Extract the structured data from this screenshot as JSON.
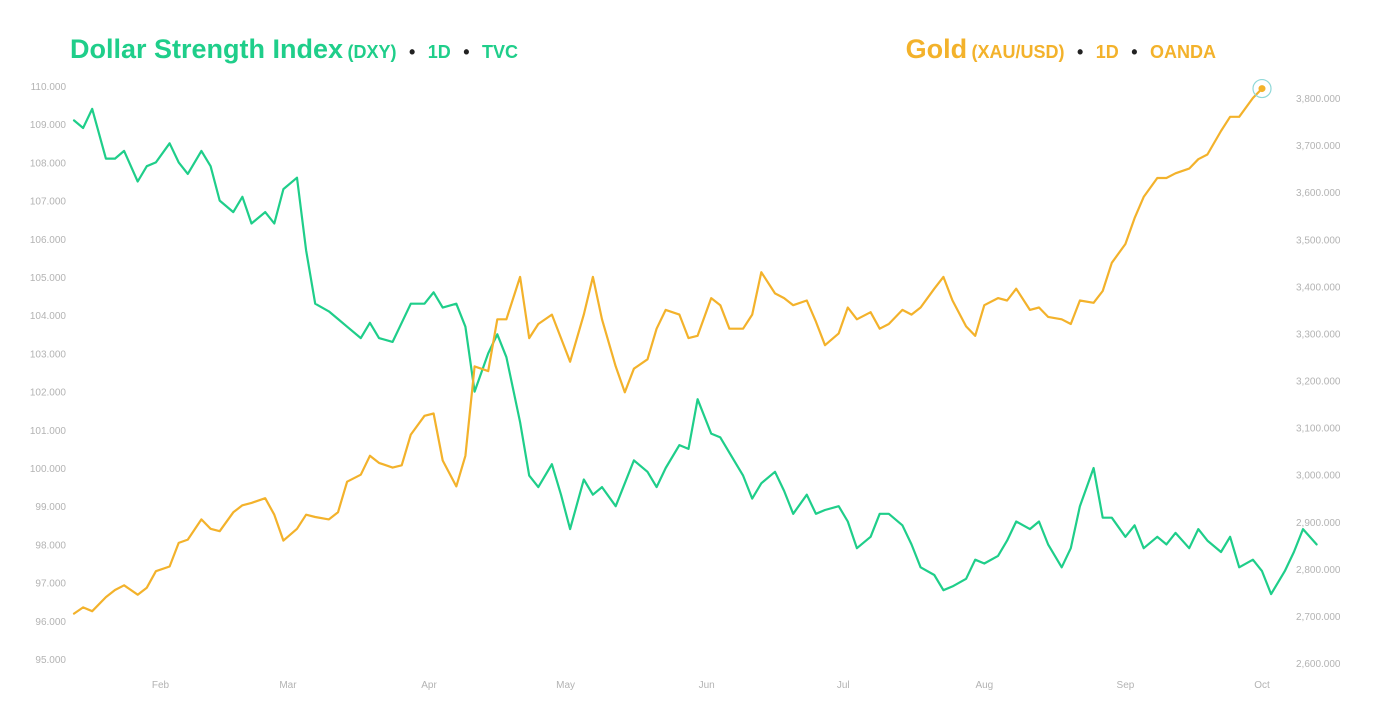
{
  "legend": {
    "left": {
      "name": "Dollar Strength Index",
      "symbol": "(DXY)",
      "interval": "1D",
      "source": "TVC",
      "color": "#1fce8a"
    },
    "right": {
      "name": "Gold",
      "symbol": "(XAU/USD)",
      "interval": "1D",
      "source": "OANDA",
      "color": "#f3b22b"
    },
    "separator": "•"
  },
  "chart_data": {
    "type": "line",
    "x_axis": {
      "range": [
        "2025-01-13",
        "2025-10-01"
      ],
      "ticks": [
        {
          "date": "2025-02-01",
          "label": "Feb"
        },
        {
          "date": "2025-03-01",
          "label": "Mar"
        },
        {
          "date": "2025-04-01",
          "label": "Apr"
        },
        {
          "date": "2025-05-01",
          "label": "May"
        },
        {
          "date": "2025-06-01",
          "label": "Jun"
        },
        {
          "date": "2025-07-01",
          "label": "Jul"
        },
        {
          "date": "2025-08-01",
          "label": "Aug"
        },
        {
          "date": "2025-09-01",
          "label": "Sep"
        },
        {
          "date": "2025-10-01",
          "label": "Oct"
        }
      ]
    },
    "y_left": {
      "range": [
        94.7,
        110.3
      ],
      "ticks": [
        "95.000",
        "96.000",
        "97.000",
        "98.000",
        "99.000",
        "100.000",
        "101.000",
        "102.000",
        "103.000",
        "104.000",
        "105.000",
        "106.000",
        "107.000",
        "108.000",
        "109.000",
        "110.000"
      ],
      "tick_values": [
        95,
        96,
        97,
        98,
        99,
        100,
        101,
        102,
        103,
        104,
        105,
        106,
        107,
        108,
        109,
        110
      ]
    },
    "y_right": {
      "range": [
        2589,
        3826
      ],
      "ticks": [
        "2,600.000",
        "2,700.000",
        "2,800.000",
        "2,900.000",
        "3,000.000",
        "3,100.000",
        "3,200.000",
        "3,300.000",
        "3,400.000",
        "3,500.000",
        "3,600.000",
        "3,700.000",
        "3,800.000"
      ],
      "tick_values": [
        2600,
        2700,
        2800,
        2900,
        3000,
        3100,
        3200,
        3300,
        3400,
        3500,
        3600,
        3700,
        3800
      ]
    },
    "grid": false,
    "series": [
      {
        "name": "Dollar Strength Index (DXY)",
        "axis": "left",
        "color": "#1fce8a",
        "points": [
          [
            "2025-01-13",
            109.1
          ],
          [
            "2025-01-15",
            108.9
          ],
          [
            "2025-01-17",
            109.4
          ],
          [
            "2025-01-20",
            108.1
          ],
          [
            "2025-01-22",
            108.1
          ],
          [
            "2025-01-24",
            108.3
          ],
          [
            "2025-01-27",
            107.5
          ],
          [
            "2025-01-29",
            107.9
          ],
          [
            "2025-01-31",
            108.0
          ],
          [
            "2025-02-03",
            108.5
          ],
          [
            "2025-02-05",
            108.0
          ],
          [
            "2025-02-07",
            107.7
          ],
          [
            "2025-02-10",
            108.3
          ],
          [
            "2025-02-12",
            107.9
          ],
          [
            "2025-02-14",
            107.0
          ],
          [
            "2025-02-17",
            106.7
          ],
          [
            "2025-02-19",
            107.1
          ],
          [
            "2025-02-21",
            106.4
          ],
          [
            "2025-02-24",
            106.7
          ],
          [
            "2025-02-26",
            106.4
          ],
          [
            "2025-02-28",
            107.3
          ],
          [
            "2025-03-03",
            107.6
          ],
          [
            "2025-03-05",
            105.7
          ],
          [
            "2025-03-07",
            104.3
          ],
          [
            "2025-03-10",
            104.1
          ],
          [
            "2025-03-12",
            103.9
          ],
          [
            "2025-03-14",
            103.7
          ],
          [
            "2025-03-17",
            103.4
          ],
          [
            "2025-03-19",
            103.8
          ],
          [
            "2025-03-21",
            103.4
          ],
          [
            "2025-03-24",
            103.3
          ],
          [
            "2025-03-26",
            103.8
          ],
          [
            "2025-03-28",
            104.3
          ],
          [
            "2025-03-31",
            104.3
          ],
          [
            "2025-04-02",
            104.6
          ],
          [
            "2025-04-04",
            104.2
          ],
          [
            "2025-04-07",
            104.3
          ],
          [
            "2025-04-09",
            103.7
          ],
          [
            "2025-04-11",
            102.0
          ],
          [
            "2025-04-14",
            103.0
          ],
          [
            "2025-04-16",
            103.5
          ],
          [
            "2025-04-18",
            102.9
          ],
          [
            "2025-04-21",
            101.2
          ],
          [
            "2025-04-23",
            99.8
          ],
          [
            "2025-04-25",
            99.5
          ],
          [
            "2025-04-28",
            100.1
          ],
          [
            "2025-04-30",
            99.3
          ],
          [
            "2025-05-02",
            98.4
          ],
          [
            "2025-05-05",
            99.7
          ],
          [
            "2025-05-07",
            99.3
          ],
          [
            "2025-05-09",
            99.5
          ],
          [
            "2025-05-12",
            99.0
          ],
          [
            "2025-05-14",
            99.6
          ],
          [
            "2025-05-16",
            100.2
          ],
          [
            "2025-05-19",
            99.9
          ],
          [
            "2025-05-21",
            99.5
          ],
          [
            "2025-05-23",
            100.0
          ],
          [
            "2025-05-26",
            100.6
          ],
          [
            "2025-05-28",
            100.5
          ],
          [
            "2025-05-30",
            101.8
          ],
          [
            "2025-06-02",
            100.9
          ],
          [
            "2025-06-04",
            100.8
          ],
          [
            "2025-06-06",
            100.4
          ],
          [
            "2025-06-09",
            99.8
          ],
          [
            "2025-06-11",
            99.2
          ],
          [
            "2025-06-13",
            99.6
          ],
          [
            "2025-06-16",
            99.9
          ],
          [
            "2025-06-18",
            99.4
          ],
          [
            "2025-06-20",
            98.8
          ],
          [
            "2025-06-23",
            99.3
          ],
          [
            "2025-06-25",
            98.8
          ],
          [
            "2025-06-27",
            98.9
          ],
          [
            "2025-06-30",
            99.0
          ],
          [
            "2025-07-02",
            98.6
          ],
          [
            "2025-07-04",
            97.9
          ],
          [
            "2025-07-07",
            98.2
          ],
          [
            "2025-07-09",
            98.8
          ],
          [
            "2025-07-11",
            98.8
          ],
          [
            "2025-07-14",
            98.5
          ],
          [
            "2025-07-16",
            98.0
          ],
          [
            "2025-07-18",
            97.4
          ],
          [
            "2025-07-21",
            97.2
          ],
          [
            "2025-07-23",
            96.8
          ],
          [
            "2025-07-25",
            96.9
          ],
          [
            "2025-07-28",
            97.1
          ],
          [
            "2025-07-30",
            97.6
          ],
          [
            "2025-08-01",
            97.5
          ],
          [
            "2025-08-04",
            97.7
          ],
          [
            "2025-08-06",
            98.1
          ],
          [
            "2025-08-08",
            98.6
          ],
          [
            "2025-08-11",
            98.4
          ],
          [
            "2025-08-13",
            98.6
          ],
          [
            "2025-08-15",
            98.0
          ],
          [
            "2025-08-18",
            97.4
          ],
          [
            "2025-08-20",
            97.9
          ],
          [
            "2025-08-22",
            99.0
          ],
          [
            "2025-08-25",
            100.0
          ],
          [
            "2025-08-27",
            98.7
          ],
          [
            "2025-08-29",
            98.7
          ],
          [
            "2025-09-01",
            98.2
          ],
          [
            "2025-09-03",
            98.5
          ],
          [
            "2025-09-05",
            97.9
          ],
          [
            "2025-09-08",
            98.2
          ],
          [
            "2025-09-10",
            98.0
          ],
          [
            "2025-09-12",
            98.3
          ],
          [
            "2025-09-15",
            97.9
          ],
          [
            "2025-09-17",
            98.4
          ],
          [
            "2025-09-19",
            98.1
          ],
          [
            "2025-09-22",
            97.8
          ],
          [
            "2025-09-24",
            98.2
          ],
          [
            "2025-09-26",
            97.4
          ],
          [
            "2025-09-29",
            97.6
          ],
          [
            "2025-10-01",
            97.3
          ],
          [
            "2025-10-03",
            96.7
          ],
          [
            "2025-10-06",
            97.3
          ],
          [
            "2025-10-08",
            97.8
          ],
          [
            "2025-10-10",
            98.4
          ],
          [
            "2025-10-13",
            98.0
          ]
        ]
      },
      {
        "name": "Gold (XAU/USD)",
        "axis": "right",
        "color": "#f3b22b",
        "points": [
          [
            "2025-01-13",
            2705
          ],
          [
            "2025-01-15",
            2718
          ],
          [
            "2025-01-17",
            2710
          ],
          [
            "2025-01-20",
            2740
          ],
          [
            "2025-01-22",
            2755
          ],
          [
            "2025-01-24",
            2765
          ],
          [
            "2025-01-27",
            2745
          ],
          [
            "2025-01-29",
            2760
          ],
          [
            "2025-01-31",
            2795
          ],
          [
            "2025-02-03",
            2805
          ],
          [
            "2025-02-05",
            2855
          ],
          [
            "2025-02-07",
            2862
          ],
          [
            "2025-02-10",
            2905
          ],
          [
            "2025-02-12",
            2885
          ],
          [
            "2025-02-14",
            2880
          ],
          [
            "2025-02-17",
            2920
          ],
          [
            "2025-02-19",
            2935
          ],
          [
            "2025-02-21",
            2940
          ],
          [
            "2025-02-24",
            2950
          ],
          [
            "2025-02-26",
            2915
          ],
          [
            "2025-02-28",
            2860
          ],
          [
            "2025-03-03",
            2885
          ],
          [
            "2025-03-05",
            2915
          ],
          [
            "2025-03-07",
            2910
          ],
          [
            "2025-03-10",
            2905
          ],
          [
            "2025-03-12",
            2920
          ],
          [
            "2025-03-14",
            2985
          ],
          [
            "2025-03-17",
            3000
          ],
          [
            "2025-03-19",
            3040
          ],
          [
            "2025-03-21",
            3025
          ],
          [
            "2025-03-24",
            3015
          ],
          [
            "2025-03-26",
            3020
          ],
          [
            "2025-03-28",
            3085
          ],
          [
            "2025-03-31",
            3125
          ],
          [
            "2025-04-02",
            3130
          ],
          [
            "2025-04-04",
            3030
          ],
          [
            "2025-04-07",
            2975
          ],
          [
            "2025-04-09",
            3040
          ],
          [
            "2025-04-11",
            3230
          ],
          [
            "2025-04-14",
            3220
          ],
          [
            "2025-04-16",
            3330
          ],
          [
            "2025-04-18",
            3330
          ],
          [
            "2025-04-21",
            3420
          ],
          [
            "2025-04-23",
            3290
          ],
          [
            "2025-04-25",
            3320
          ],
          [
            "2025-04-28",
            3340
          ],
          [
            "2025-04-30",
            3290
          ],
          [
            "2025-05-02",
            3240
          ],
          [
            "2025-05-05",
            3340
          ],
          [
            "2025-05-07",
            3420
          ],
          [
            "2025-05-09",
            3330
          ],
          [
            "2025-05-12",
            3230
          ],
          [
            "2025-05-14",
            3175
          ],
          [
            "2025-05-16",
            3225
          ],
          [
            "2025-05-19",
            3245
          ],
          [
            "2025-05-21",
            3310
          ],
          [
            "2025-05-23",
            3350
          ],
          [
            "2025-05-26",
            3340
          ],
          [
            "2025-05-28",
            3290
          ],
          [
            "2025-05-30",
            3295
          ],
          [
            "2025-06-02",
            3375
          ],
          [
            "2025-06-04",
            3360
          ],
          [
            "2025-06-06",
            3310
          ],
          [
            "2025-06-09",
            3310
          ],
          [
            "2025-06-11",
            3340
          ],
          [
            "2025-06-13",
            3430
          ],
          [
            "2025-06-16",
            3385
          ],
          [
            "2025-06-18",
            3375
          ],
          [
            "2025-06-20",
            3360
          ],
          [
            "2025-06-23",
            3370
          ],
          [
            "2025-06-25",
            3325
          ],
          [
            "2025-06-27",
            3275
          ],
          [
            "2025-06-30",
            3300
          ],
          [
            "2025-07-02",
            3355
          ],
          [
            "2025-07-04",
            3330
          ],
          [
            "2025-07-07",
            3345
          ],
          [
            "2025-07-09",
            3310
          ],
          [
            "2025-07-11",
            3320
          ],
          [
            "2025-07-14",
            3350
          ],
          [
            "2025-07-16",
            3340
          ],
          [
            "2025-07-18",
            3355
          ],
          [
            "2025-07-21",
            3395
          ],
          [
            "2025-07-23",
            3420
          ],
          [
            "2025-07-25",
            3370
          ],
          [
            "2025-07-28",
            3315
          ],
          [
            "2025-07-30",
            3295
          ],
          [
            "2025-08-01",
            3360
          ],
          [
            "2025-08-04",
            3375
          ],
          [
            "2025-08-06",
            3370
          ],
          [
            "2025-08-08",
            3395
          ],
          [
            "2025-08-11",
            3350
          ],
          [
            "2025-08-13",
            3355
          ],
          [
            "2025-08-15",
            3335
          ],
          [
            "2025-08-18",
            3330
          ],
          [
            "2025-08-20",
            3320
          ],
          [
            "2025-08-22",
            3370
          ],
          [
            "2025-08-25",
            3365
          ],
          [
            "2025-08-27",
            3390
          ],
          [
            "2025-08-29",
            3450
          ],
          [
            "2025-09-01",
            3490
          ],
          [
            "2025-09-03",
            3545
          ],
          [
            "2025-09-05",
            3590
          ],
          [
            "2025-09-08",
            3630
          ],
          [
            "2025-09-10",
            3630
          ],
          [
            "2025-09-12",
            3640
          ],
          [
            "2025-09-15",
            3650
          ],
          [
            "2025-09-17",
            3670
          ],
          [
            "2025-09-19",
            3680
          ],
          [
            "2025-09-22",
            3730
          ],
          [
            "2025-09-24",
            3760
          ],
          [
            "2025-09-26",
            3760
          ],
          [
            "2025-09-29",
            3800
          ],
          [
            "2025-10-01",
            3820
          ]
        ]
      }
    ]
  }
}
